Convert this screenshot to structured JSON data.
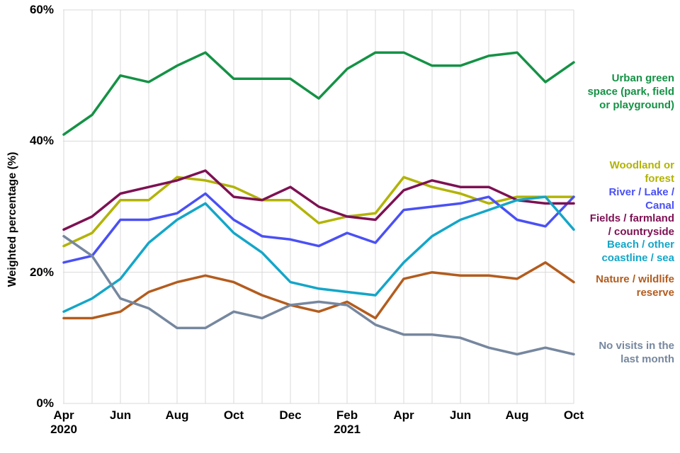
{
  "y_axis": {
    "title": "Weighted percentage (%)",
    "ticks": [
      {
        "value": 60,
        "label": "60%"
      },
      {
        "value": 40,
        "label": "40%"
      },
      {
        "value": 20,
        "label": "20%"
      },
      {
        "value": 0,
        "label": "0%"
      }
    ]
  },
  "x_axis": {
    "ticks": [
      {
        "month_index": 0,
        "label": "Apr",
        "year": "2020"
      },
      {
        "month_index": 2,
        "label": "Jun"
      },
      {
        "month_index": 4,
        "label": "Aug"
      },
      {
        "month_index": 6,
        "label": "Oct"
      },
      {
        "month_index": 8,
        "label": "Dec"
      },
      {
        "month_index": 10,
        "label": "Feb",
        "year": "2021"
      },
      {
        "month_index": 12,
        "label": "Apr"
      },
      {
        "month_index": 14,
        "label": "Jun"
      },
      {
        "month_index": 16,
        "label": "Aug"
      },
      {
        "month_index": 18,
        "label": "Oct"
      }
    ]
  },
  "chart_data": {
    "type": "line",
    "title": "",
    "xlabel": "",
    "ylabel": "Weighted percentage (%)",
    "ylim": [
      0,
      60
    ],
    "grid": true,
    "legend_position": "right-of-plot, colored text labels",
    "categories": [
      "Apr 2020",
      "May 2020",
      "Jun 2020",
      "Jul 2020",
      "Aug 2020",
      "Sep 2020",
      "Oct 2020",
      "Nov 2020",
      "Dec 2020",
      "Jan 2021",
      "Feb 2021",
      "Mar 2021",
      "Apr 2021",
      "May 2021",
      "Jun 2021",
      "Jul 2021",
      "Aug 2021",
      "Sep 2021",
      "Oct 2021"
    ],
    "series": [
      {
        "id": "urban-green-space",
        "name": "Urban green space (park, field or playground)",
        "legend_lines": [
          "Urban green",
          "space (park, field",
          "or playground)"
        ],
        "color": "#149245",
        "values": [
          41,
          44,
          50,
          49,
          51.5,
          53.5,
          49.5,
          49.5,
          49.5,
          46.5,
          51,
          53.5,
          53.5,
          51.5,
          51.5,
          53,
          53.5,
          49,
          52
        ]
      },
      {
        "id": "woodland-or-forest",
        "name": "Woodland or forest",
        "legend_lines": [
          "Woodland or",
          "forest"
        ],
        "color": "#b2b303",
        "values": [
          24,
          26,
          31,
          31,
          34.5,
          34,
          33,
          31,
          31,
          27.5,
          28.5,
          29,
          34.5,
          33,
          32,
          30.5,
          31.5,
          31.5,
          31.5
        ]
      },
      {
        "id": "river-lake-canal",
        "name": "River / Lake / Canal",
        "legend_lines": [
          "River / Lake /",
          "Canal"
        ],
        "color": "#4a50f5",
        "values": [
          21.5,
          22.5,
          28,
          28,
          29,
          32,
          28,
          25.5,
          25,
          24,
          26,
          24.5,
          29.5,
          30,
          30.5,
          31.5,
          28,
          27,
          31.5
        ]
      },
      {
        "id": "fields-farmland-countryside",
        "name": "Fields / farmland / countryside",
        "legend_lines": [
          "Fields / farmland",
          "/ countryside"
        ],
        "color": "#7d1153",
        "values": [
          26.5,
          28.5,
          32,
          33,
          34,
          35.5,
          31.5,
          31,
          33,
          30,
          28.5,
          28,
          32.5,
          34,
          33,
          33,
          31,
          30.5,
          30.5
        ]
      },
      {
        "id": "beach-coastline-sea",
        "name": "Beach / other coastline / sea",
        "legend_lines": [
          "Beach / other",
          "coastline / sea"
        ],
        "color": "#14a6c8",
        "values": [
          14,
          16,
          19,
          24.5,
          28,
          30.5,
          26,
          23,
          18.5,
          17.5,
          17,
          16.5,
          21.5,
          25.5,
          28,
          29.5,
          31,
          31.5,
          26.5
        ]
      },
      {
        "id": "nature-wildlife-reserve",
        "name": "Nature / wildlife reserve",
        "legend_lines": [
          "Nature / wildlife",
          "reserve"
        ],
        "color": "#b35c1e",
        "values": [
          13,
          13,
          14,
          17,
          18.5,
          19.5,
          18.5,
          16.5,
          15,
          14,
          15.5,
          13,
          19,
          20,
          19.5,
          19.5,
          19,
          21.5,
          18.5
        ]
      },
      {
        "id": "no-visits-last-month",
        "name": "No visits in the last month",
        "legend_lines": [
          "No visits in the",
          "last month"
        ],
        "color": "#76879f",
        "values": [
          25.5,
          22.5,
          16,
          14.5,
          11.5,
          11.5,
          14,
          13,
          15,
          15.5,
          15,
          12,
          10.5,
          10.5,
          10,
          8.5,
          7.5,
          8.5,
          7.5
        ]
      }
    ],
    "style": {
      "gridline_color": "#d9d9d9",
      "line_width": 3.5
    }
  }
}
